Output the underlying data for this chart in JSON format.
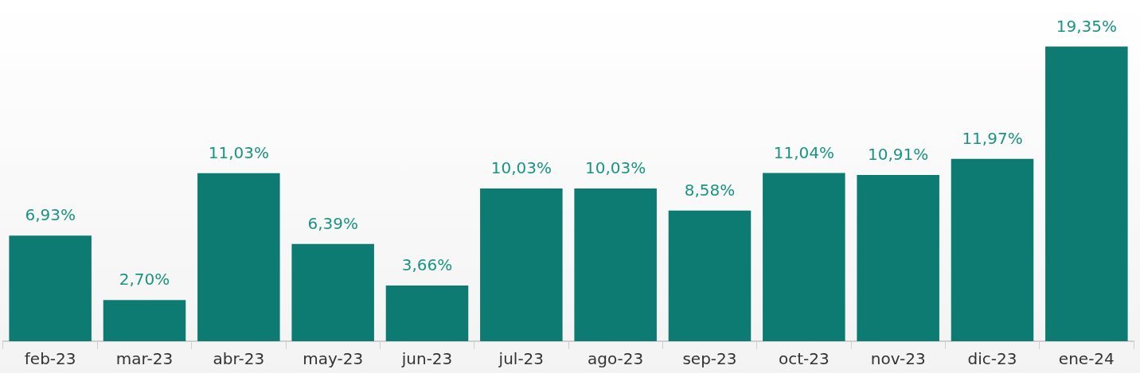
{
  "chart_data": {
    "type": "bar",
    "categories": [
      "feb-23",
      "mar-23",
      "abr-23",
      "may-23",
      "jun-23",
      "jul-23",
      "ago-23",
      "sep-23",
      "oct-23",
      "nov-23",
      "dic-23",
      "ene-24"
    ],
    "values": [
      6.93,
      2.7,
      11.03,
      6.39,
      3.66,
      10.03,
      10.03,
      8.58,
      11.04,
      10.91,
      11.97,
      19.35
    ],
    "value_labels": [
      "6,93%",
      "2,70%",
      "11,03%",
      "6,39%",
      "3,66%",
      "10,03%",
      "10,03%",
      "8,58%",
      "11,04%",
      "10,91%",
      "11,97%",
      "19,35%"
    ],
    "color": "#0e7b73",
    "tick_labels": "x"
  }
}
